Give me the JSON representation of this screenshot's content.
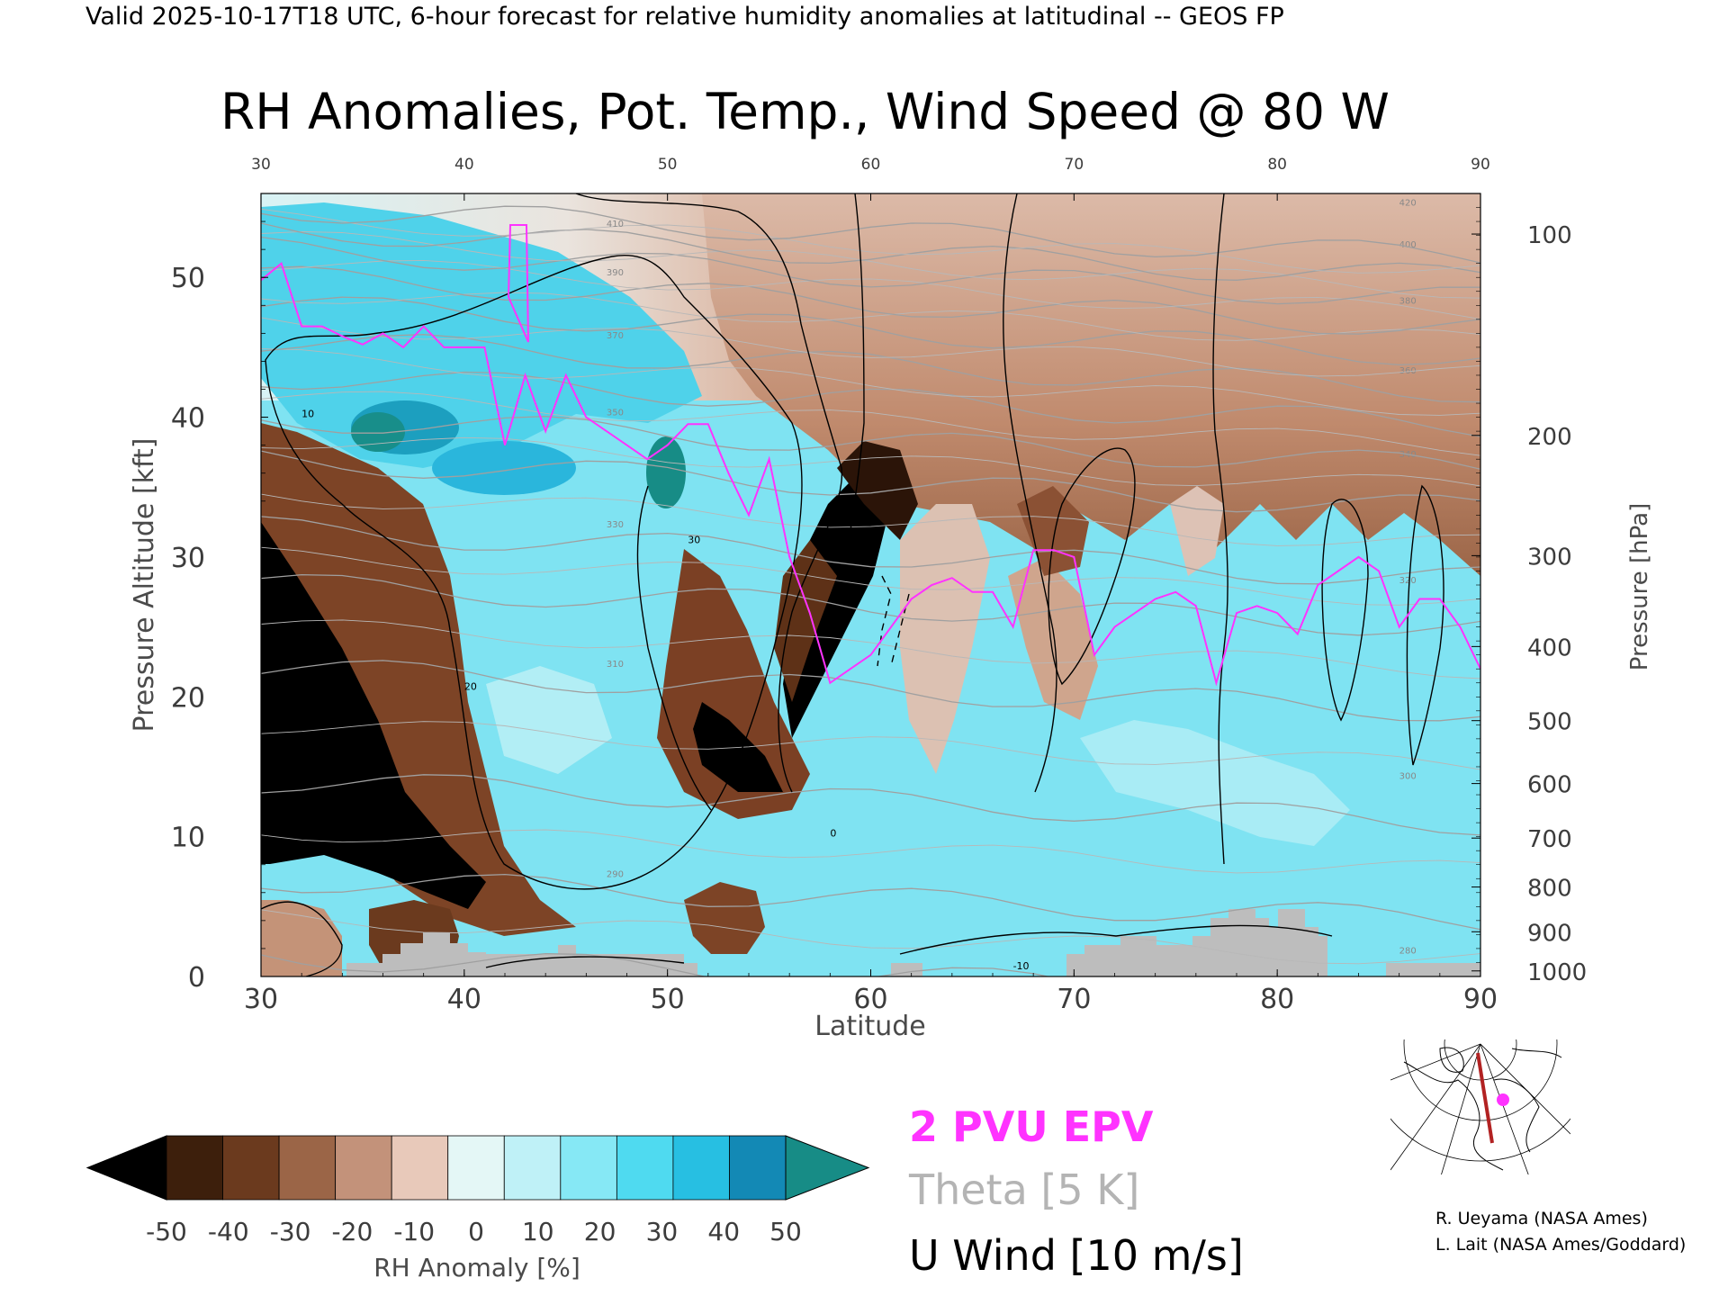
{
  "header": {
    "valid_line": "Valid 2025-10-17T18 UTC, 6-hour forecast for relative humidity anomalies at latitudinal -- GEOS FP",
    "title": "RH Anomalies, Pot. Temp., Wind Speed @ 80 W"
  },
  "chart_data": {
    "type": "heatmap",
    "title": "RH Anomalies, Pot. Temp., Wind Speed @ 80 W",
    "xlabel": "Latitude",
    "ylabel": "Pressure Altitude [kft]",
    "y2label": "Pressure [hPa]",
    "xlim": [
      30,
      90
    ],
    "ylim": [
      0,
      56
    ],
    "x_ticks": [
      30,
      40,
      50,
      60,
      70,
      80,
      90
    ],
    "y_ticks": [
      0,
      10,
      20,
      30,
      40,
      50
    ],
    "pressure_ticks": [
      {
        "label": "100",
        "kft": 53.1
      },
      {
        "label": "200",
        "kft": 38.7
      },
      {
        "label": "300",
        "kft": 30.1
      },
      {
        "label": "400",
        "kft": 23.6
      },
      {
        "label": "500",
        "kft": 18.3
      },
      {
        "label": "600",
        "kft": 13.8
      },
      {
        "label": "700",
        "kft": 9.9
      },
      {
        "label": "800",
        "kft": 6.4
      },
      {
        "label": "900",
        "kft": 3.2
      },
      {
        "label": "1000",
        "kft": 0.4
      }
    ],
    "colorbar": {
      "label": "RH Anomaly [%]",
      "ticks": [
        "-50",
        "-40",
        "-30",
        "-20",
        "-10",
        "0",
        "10",
        "20",
        "30",
        "40",
        "50"
      ],
      "colors": [
        "#000000",
        "#3d1f0c",
        "#6b3a1e",
        "#9b6547",
        "#c3927a",
        "#e8c9ba",
        "#e4f7f6",
        "#bff1f7",
        "#86e8f5",
        "#4fdaf0",
        "#27bfe2",
        "#1389b5",
        "#178c86"
      ]
    },
    "legend": [
      {
        "label": "2 PVU EPV",
        "color": "#ff33ff"
      },
      {
        "label": "Theta [5 K]",
        "color": "#b4b4b4"
      },
      {
        "label": "U Wind [10 m/s]",
        "color": "#000000"
      }
    ],
    "epv_2pvu_line": [
      [
        30,
        49.8
      ],
      [
        31,
        51
      ],
      [
        32,
        46.5
      ],
      [
        33,
        46.5
      ],
      [
        34,
        45.8
      ],
      [
        35,
        45.2
      ],
      [
        36,
        46
      ],
      [
        37,
        45
      ],
      [
        38,
        46.5
      ],
      [
        39,
        45
      ],
      [
        40,
        45
      ],
      [
        41,
        45
      ],
      [
        42,
        38
      ],
      [
        43,
        43
      ],
      [
        44,
        39
      ],
      [
        45,
        43
      ],
      [
        46,
        40
      ],
      [
        47,
        39
      ],
      [
        48,
        38
      ],
      [
        49,
        37
      ],
      [
        50,
        38
      ],
      [
        51,
        39.5
      ],
      [
        52,
        39.5
      ],
      [
        53,
        36
      ],
      [
        54,
        33
      ],
      [
        55,
        37
      ],
      [
        56,
        30
      ],
      [
        57,
        26
      ],
      [
        58,
        21
      ],
      [
        59,
        22
      ],
      [
        60,
        23
      ],
      [
        61,
        25
      ],
      [
        62,
        27
      ],
      [
        63,
        28
      ],
      [
        64,
        28.5
      ],
      [
        65,
        27.5
      ],
      [
        66,
        27.5
      ],
      [
        67,
        25
      ],
      [
        68,
        30.5
      ],
      [
        69,
        30.5
      ],
      [
        70,
        30
      ],
      [
        71,
        23
      ],
      [
        72,
        25
      ],
      [
        73,
        26
      ],
      [
        74,
        27
      ],
      [
        75,
        27.5
      ],
      [
        76,
        26.5
      ],
      [
        77,
        21
      ],
      [
        78,
        26
      ],
      [
        79,
        26.5
      ],
      [
        80,
        26
      ],
      [
        81,
        24.5
      ],
      [
        82,
        28
      ],
      [
        83,
        29
      ],
      [
        84,
        30
      ],
      [
        85,
        29
      ],
      [
        86,
        25
      ],
      [
        87,
        27
      ],
      [
        88,
        27
      ],
      [
        89,
        25
      ],
      [
        90,
        22
      ]
    ],
    "theta_levels": [
      {
        "label": "280",
        "kft": 1.5
      },
      {
        "label": "290",
        "kft": 7
      },
      {
        "label": "300",
        "kft": 14
      },
      {
        "label": "310",
        "kft": 22
      },
      {
        "label": "320",
        "kft": 28
      },
      {
        "label": "330",
        "kft": 32
      },
      {
        "label": "340",
        "kft": 37
      },
      {
        "label": "350",
        "kft": 40
      },
      {
        "label": "360",
        "kft": 43
      },
      {
        "label": "370",
        "kft": 45.5
      },
      {
        "label": "380",
        "kft": 48
      },
      {
        "label": "390",
        "kft": 50
      },
      {
        "label": "400",
        "kft": 52
      },
      {
        "label": "410",
        "kft": 53.5
      },
      {
        "label": "420",
        "kft": 55
      }
    ],
    "u_wind_labels": [
      "10",
      "20",
      "30",
      "0",
      "-10"
    ]
  },
  "inset_map": {
    "name": "cross-section location map"
  },
  "credits": {
    "line1": "R. Ueyama (NASA Ames)",
    "line2": "L. Lait (NASA Ames/Goddard)"
  }
}
